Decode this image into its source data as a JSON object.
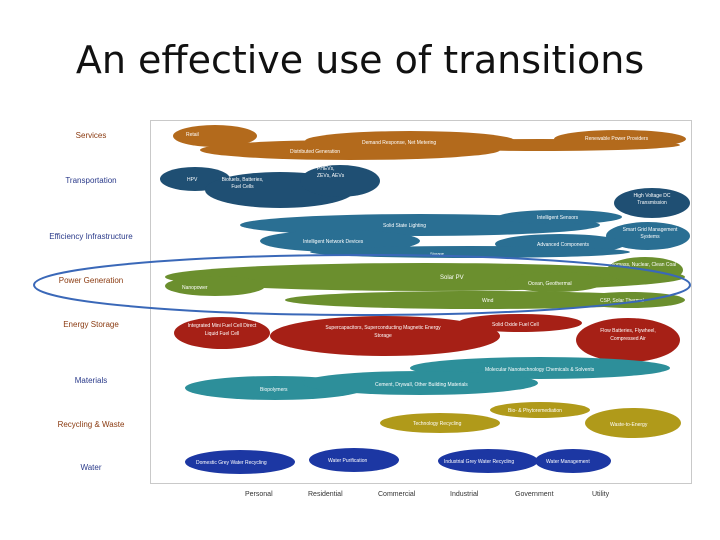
{
  "slide": {
    "title": "An effective use of transitions"
  },
  "colors": {
    "services": "#b36a1c",
    "transportation": "#1f4f73",
    "efficiency": "#2a6f93",
    "generation": "#6b8f2e",
    "storage": "#a62016",
    "materials": "#2d8f9a",
    "recycling": "#b09a1a",
    "water": "#1c37a3",
    "rowlabel_primary": "#8a3a10",
    "rowlabel_secondary": "#2a3a8a",
    "highlight_ring": "#3a68b8"
  },
  "row_labels": {
    "services": "Services",
    "transportation": "Transportation",
    "efficiency": "Efficiency Infrastructure",
    "generation": "Power Generation",
    "storage": "Energy Storage",
    "materials": "Materials",
    "recycling": "Recycling & Waste",
    "water": "Water"
  },
  "column_labels": [
    "Personal",
    "Residential",
    "Commercial",
    "Industrial",
    "Government",
    "Utility"
  ],
  "blobs": {
    "retail": "Retail",
    "demand_response": "Demand Response, Net Metering",
    "renewable_power": "Renewable Power Providers",
    "distributed_gen": "Distributed Generation",
    "hpv": "HPV",
    "biofuels": "Biofuels, Batteries, Fuel Cells",
    "phevs": "PHEVs, ZEVs, AEVs",
    "hv_dc": "High Voltage DC Transmission",
    "intelligent_sensors": "Intelligent Sensors",
    "solid_state_lighting": "Solid State Lighting",
    "smart_grid": "Smart Grid Management Systems",
    "intelligent_network": "Intelligent Network Devices",
    "advanced_components": "Advanced Components",
    "storage_small": "Storage",
    "biomass": "Biomass, Nuclear, Clean Coal",
    "solar_pv": "Solar PV",
    "nanopower": "Nanopower",
    "ocean_geothermal": "Ocean, Geothermal",
    "wind": "Wind",
    "csp_solar_thermal": "CSP, Solar Thermal",
    "mini_fuel_cell": "Integrated Mini Fuel Cell Direct Liquid Fuel Cell",
    "supercapacitors": "Supercapacitors, Superconducting Magnetic Energy Storage",
    "solid_oxide": "Solid Oxide Fuel Cell",
    "flow_batteries": "Flow Batteries, Flywheel, Compressed Air",
    "molecular_nano": "Molecular Nanotechnology Chemicals & Solvents",
    "biopolymers": "Biopolymers",
    "cement_drywall": "Cement, Drywall, Other Building Materials",
    "bio_phyto": "Bio- & Phytoremediation",
    "technology_recycling": "Technology Recycling",
    "waste_to_energy": "Waste-to-Energy",
    "domestic_grey": "Domestic Grey Water Recycling",
    "water_purification": "Water Purification",
    "industrial_grey": "Industrial Grey Water Recycling",
    "water_management": "Water Management"
  }
}
